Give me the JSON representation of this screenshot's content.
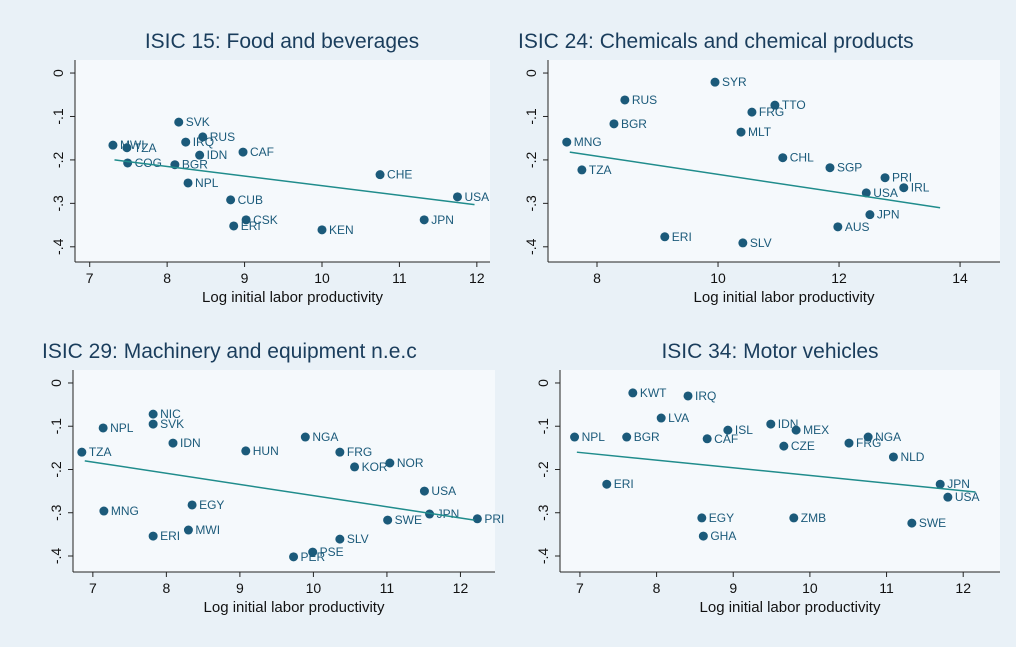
{
  "chart_data": [
    {
      "type": "scatter",
      "title": "ISIC 15: Food and beverages",
      "xlabel": "Log initial labor productivity",
      "color": "#1b5a7a",
      "fit_color": "#1f8c8c",
      "labels": [
        "SVK",
        "MWI",
        "TZA",
        "IRQ",
        "RUS",
        "IDN",
        "CAF",
        "COG",
        "BGR",
        "NPL",
        "CUB",
        "CSK",
        "ERI",
        "JPN",
        "USA",
        "CHE",
        "KEN"
      ],
      "x": [
        8.15,
        7.3,
        7.48,
        8.24,
        8.46,
        8.42,
        8.98,
        7.49,
        8.1,
        8.27,
        8.82,
        9.02,
        8.86,
        11.32,
        11.75,
        10.75,
        10.0
      ],
      "y": [
        -0.113,
        -0.166,
        -0.172,
        -0.159,
        -0.147,
        -0.189,
        -0.182,
        -0.207,
        -0.211,
        -0.253,
        -0.292,
        -0.338,
        -0.352,
        -0.338,
        -0.285,
        -0.234,
        -0.361
      ],
      "fit": {
        "x": [
          7.32,
          11.97
        ],
        "y": [
          -0.2,
          -0.303
        ]
      },
      "xlim": [
        6.81,
        12.17
      ],
      "ylim": [
        -0.435,
        0.03
      ],
      "xticks": [
        7,
        8,
        9,
        10,
        11,
        12
      ],
      "yticks": [
        0,
        {
          "value": -0.1,
          "label": "-.1"
        },
        {
          "value": -0.2,
          "label": "-.2"
        },
        {
          "value": -0.3,
          "label": "-.3"
        },
        {
          "value": -0.4,
          "label": "-.4"
        }
      ]
    },
    {
      "type": "scatter",
      "title": "ISIC 24: Chemicals and chemical products",
      "xlabel": "Log initial labor productivity",
      "color": "#1b5a7a",
      "fit_color": "#1f8c8c",
      "labels": [
        "SYR",
        "RUS",
        "TTO",
        "FRG",
        "BGR",
        "MLT",
        "MNG",
        "CHL",
        "SGP",
        "PRI",
        "IRL",
        "USA",
        "TZA",
        "JPN",
        "AUS",
        "ERI",
        "SLV"
      ],
      "x": [
        9.95,
        8.46,
        10.94,
        10.56,
        8.28,
        10.38,
        7.5,
        11.07,
        11.85,
        12.76,
        13.07,
        12.45,
        7.75,
        12.51,
        11.98,
        9.12,
        10.41
      ],
      "y": [
        -0.021,
        -0.062,
        -0.074,
        -0.09,
        -0.117,
        -0.136,
        -0.159,
        -0.195,
        -0.218,
        -0.241,
        -0.264,
        -0.276,
        -0.223,
        -0.326,
        -0.354,
        -0.377,
        -0.391
      ],
      "fit": {
        "x": [
          7.55,
          13.67
        ],
        "y": [
          -0.182,
          -0.31
        ]
      },
      "xlim": [
        7.19,
        14.66
      ],
      "ylim": [
        -0.435,
        0.03
      ],
      "xticks": [
        8,
        10,
        12,
        14
      ],
      "yticks": [
        0,
        {
          "value": -0.1,
          "label": "-.1"
        },
        {
          "value": -0.2,
          "label": "-.2"
        },
        {
          "value": -0.3,
          "label": "-.3"
        },
        {
          "value": -0.4,
          "label": "-.4"
        }
      ]
    },
    {
      "type": "scatter",
      "title": "ISIC 29: Machinery and equipment n.e.c",
      "xlabel": "Log initial labor productivity",
      "color": "#1b5a7a",
      "fit_color": "#1f8c8c",
      "labels": [
        "NIC",
        "SVK",
        "NPL",
        "NGA",
        "IDN",
        "TZA",
        "HUN",
        "FRG",
        "NOR",
        "KOR",
        "USA",
        "PRI",
        "JPN",
        "SWE",
        "MNG",
        "EGY",
        "MWI",
        "ERI",
        "SLV",
        "PSE",
        "PER"
      ],
      "x": [
        7.82,
        7.82,
        7.14,
        9.89,
        8.09,
        6.85,
        9.08,
        10.36,
        11.04,
        10.56,
        11.51,
        12.23,
        11.58,
        11.01,
        7.15,
        8.35,
        8.3,
        7.82,
        10.36,
        9.99,
        9.73
      ],
      "y": [
        -0.072,
        -0.095,
        -0.104,
        -0.125,
        -0.139,
        -0.16,
        -0.157,
        -0.16,
        -0.185,
        -0.194,
        -0.25,
        -0.314,
        -0.303,
        -0.317,
        -0.296,
        -0.282,
        -0.34,
        -0.354,
        -0.361,
        -0.391,
        -0.402
      ],
      "fit": {
        "x": [
          6.89,
          12.19
        ],
        "y": [
          -0.18,
          -0.317
        ]
      },
      "xlim": [
        6.73,
        12.47
      ],
      "ylim": [
        -0.437,
        0.03
      ],
      "xticks": [
        7,
        8,
        9,
        10,
        11,
        12
      ],
      "yticks": [
        0,
        {
          "value": -0.1,
          "label": "-.1"
        },
        {
          "value": -0.2,
          "label": "-.2"
        },
        {
          "value": -0.3,
          "label": "-.3"
        },
        {
          "value": -0.4,
          "label": "-.4"
        }
      ]
    },
    {
      "type": "scatter",
      "title": "ISIC 34: Motor vehicles",
      "xlabel": "Log initial labor productivity",
      "color": "#1b5a7a",
      "fit_color": "#1f8c8c",
      "labels": [
        "KWT",
        "IRQ",
        "LVA",
        "IDN",
        "ISL",
        "MEX",
        "NPL",
        "BGR",
        "NGA",
        "CAF",
        "CZE",
        "FRG",
        "NLD",
        "JPN",
        "USA",
        "ERI",
        "SWE",
        "EGY",
        "ZMB",
        "GHA"
      ],
      "x": [
        7.69,
        8.41,
        8.06,
        9.49,
        8.93,
        9.82,
        6.93,
        7.61,
        10.76,
        8.66,
        9.66,
        10.51,
        11.09,
        11.7,
        11.8,
        7.35,
        11.33,
        8.59,
        9.79,
        8.61
      ],
      "y": [
        -0.023,
        -0.03,
        -0.081,
        -0.095,
        -0.109,
        -0.109,
        -0.125,
        -0.125,
        -0.125,
        -0.129,
        -0.146,
        -0.139,
        -0.171,
        -0.234,
        -0.264,
        -0.234,
        -0.324,
        -0.312,
        -0.312,
        -0.354
      ],
      "fit": {
        "x": [
          6.96,
          12.16
        ],
        "y": [
          -0.16,
          -0.252
        ]
      },
      "xlim": [
        6.74,
        12.48
      ],
      "ylim": [
        -0.437,
        0.03
      ],
      "xticks": [
        7,
        8,
        9,
        10,
        11,
        12
      ],
      "yticks": [
        0,
        {
          "value": -0.1,
          "label": "-.1"
        },
        {
          "value": -0.2,
          "label": "-.2"
        },
        {
          "value": -0.3,
          "label": "-.3"
        },
        {
          "value": -0.4,
          "label": "-.4"
        }
      ]
    }
  ]
}
